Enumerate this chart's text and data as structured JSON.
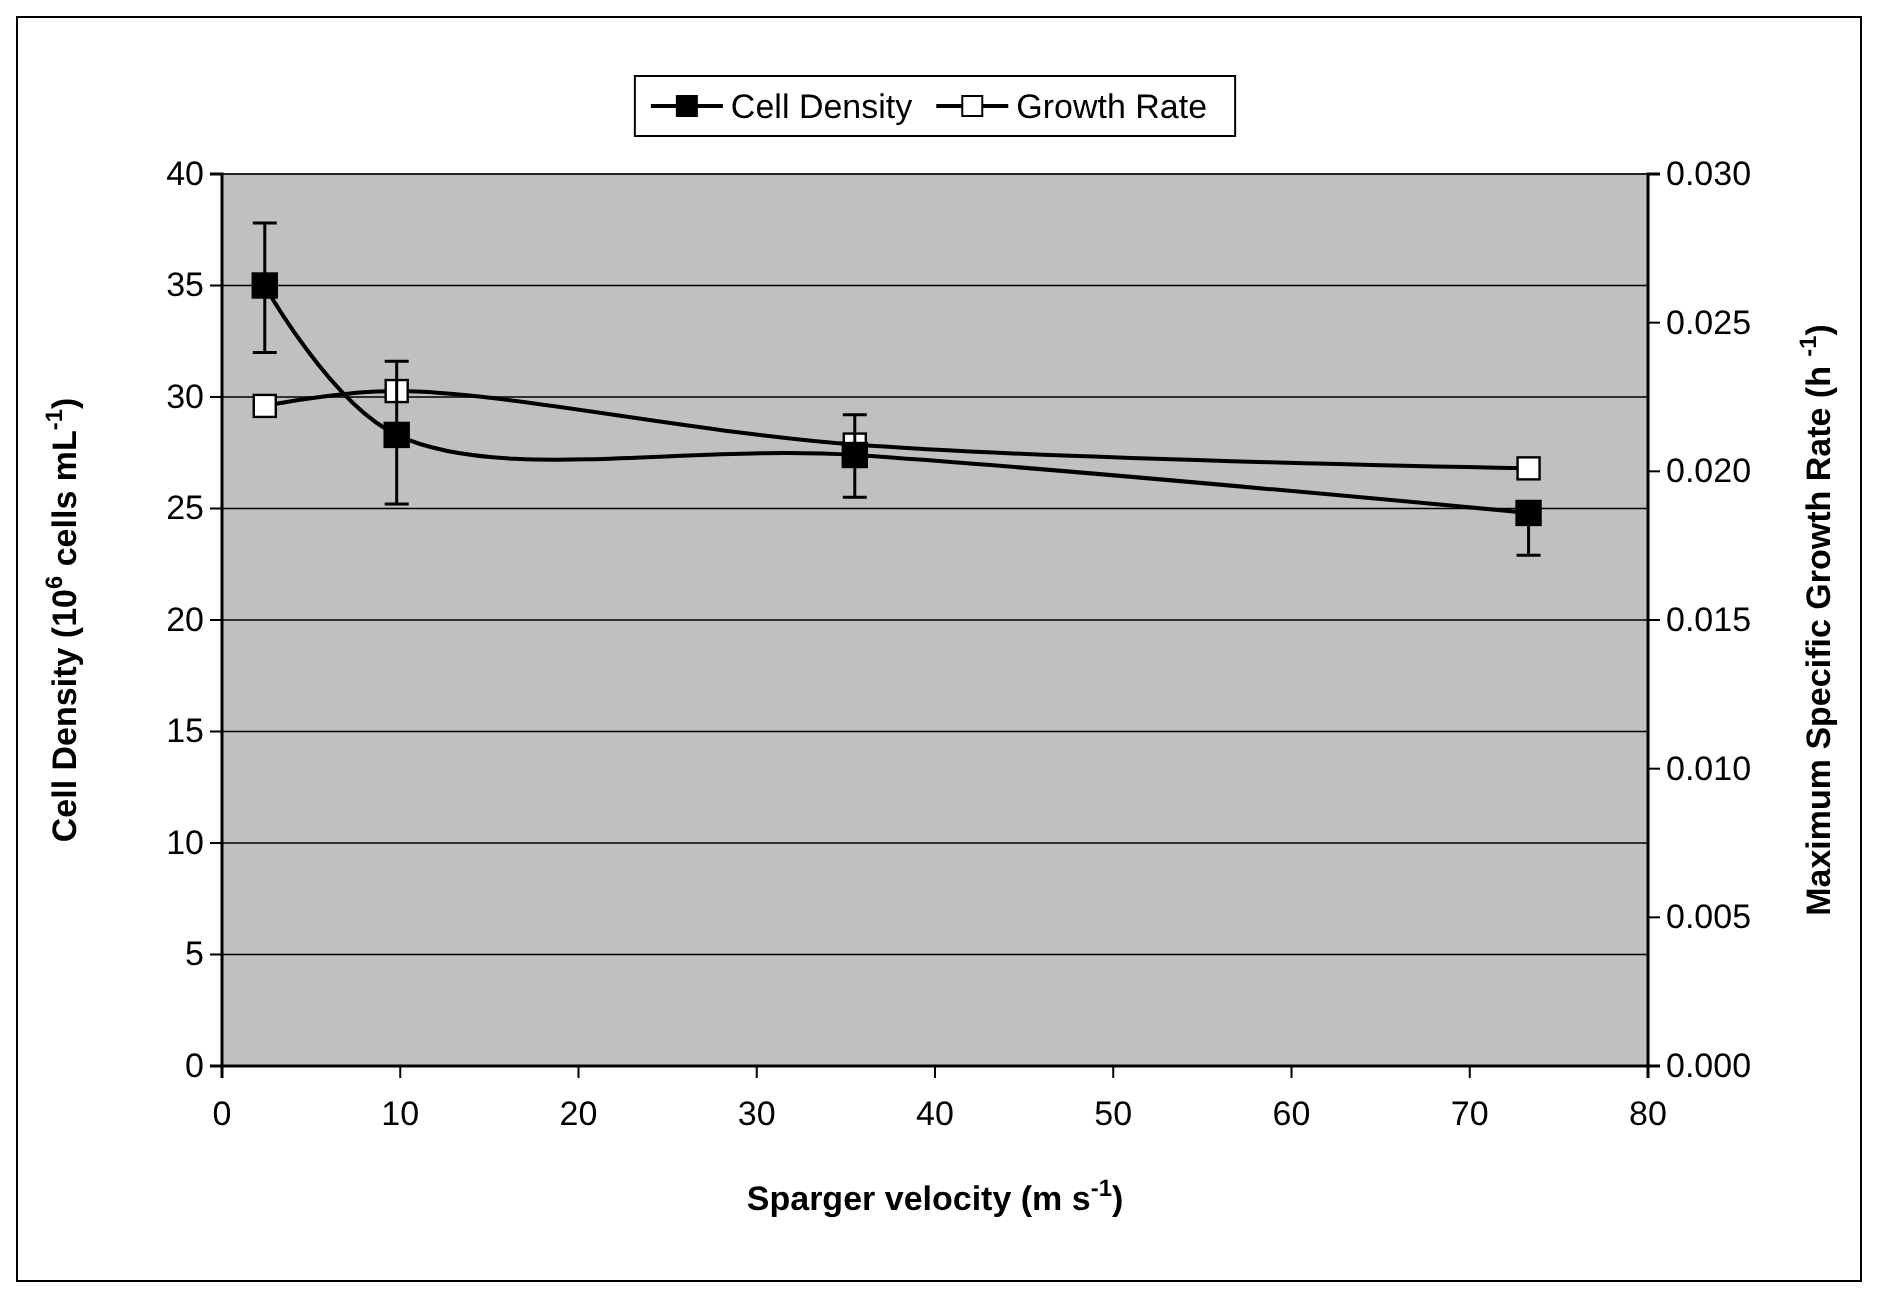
{
  "chart_data": {
    "type": "line",
    "xlabel": "Sparger velocity (m s$^{-1}$)",
    "ylabel": "Cell Density (10$^{6}$ cells mL$^{-1}$)",
    "y2label": "Maximum Specific Growth Rate (h $^{-1}$)",
    "x": [
      2.4,
      9.8,
      35.5,
      73.3
    ],
    "series": [
      {
        "name": "Cell Density",
        "color": "#000000",
        "marker": "square",
        "values": [
          35.0,
          28.3,
          27.4,
          24.8
        ],
        "errors": [
          [
            32.0,
            37.8
          ],
          [
            25.2,
            31.6
          ],
          [
            25.5,
            29.2
          ],
          [
            22.9,
            24.8
          ]
        ]
      },
      {
        "name": "Growth Rate",
        "color": "#000000",
        "marker": "square",
        "axis": "y2",
        "values": [
          0.0222,
          0.0227,
          0.0209,
          0.0201
        ]
      }
    ],
    "xlim": [
      0,
      80
    ],
    "xticks": [
      0,
      10,
      20,
      30,
      40,
      50,
      60,
      70,
      80
    ],
    "ylim": [
      0,
      40
    ],
    "yticks": [
      0,
      5,
      10,
      15,
      20,
      25,
      30,
      35,
      40
    ],
    "y2lim": [
      0,
      0.03
    ],
    "y2ticks": [
      {
        "value": 0,
        "label": "0.000"
      },
      {
        "value": 0.005,
        "label": "0.005"
      },
      {
        "value": 0.01,
        "label": "0.010"
      },
      {
        "value": 0.015,
        "label": "0.015"
      },
      {
        "value": 0.02,
        "label": "0.020"
      },
      {
        "value": 0.025,
        "label": "0.025"
      },
      {
        "value": 0.03,
        "label": "0.030"
      }
    ],
    "grid": "y",
    "legend": "top",
    "line_style": "solid"
  }
}
